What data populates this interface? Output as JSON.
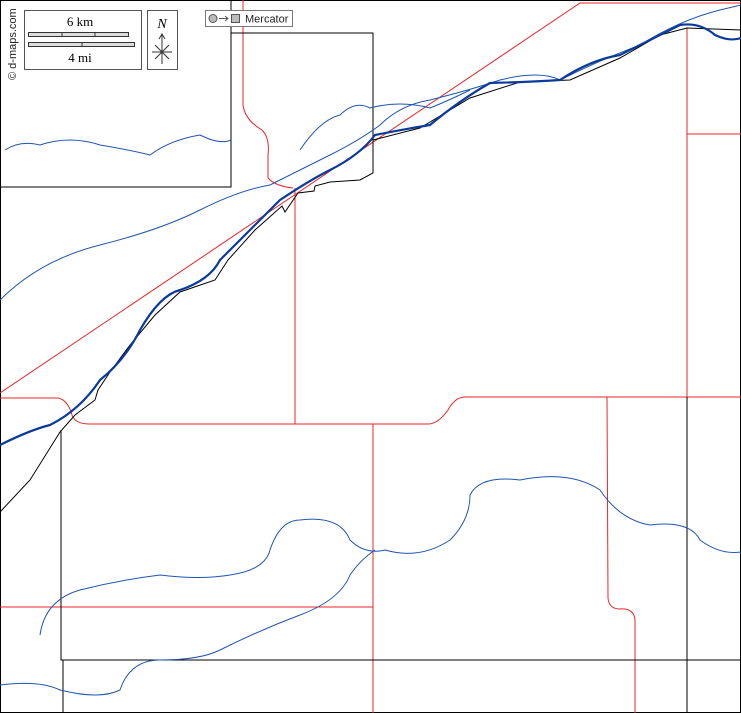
{
  "scale_bar": {
    "top_label": "6 km",
    "bottom_label": "4 mi"
  },
  "north_arrow": {
    "label": "N"
  },
  "projection": {
    "label": "Mercator"
  },
  "credit": "© d-maps.com"
}
